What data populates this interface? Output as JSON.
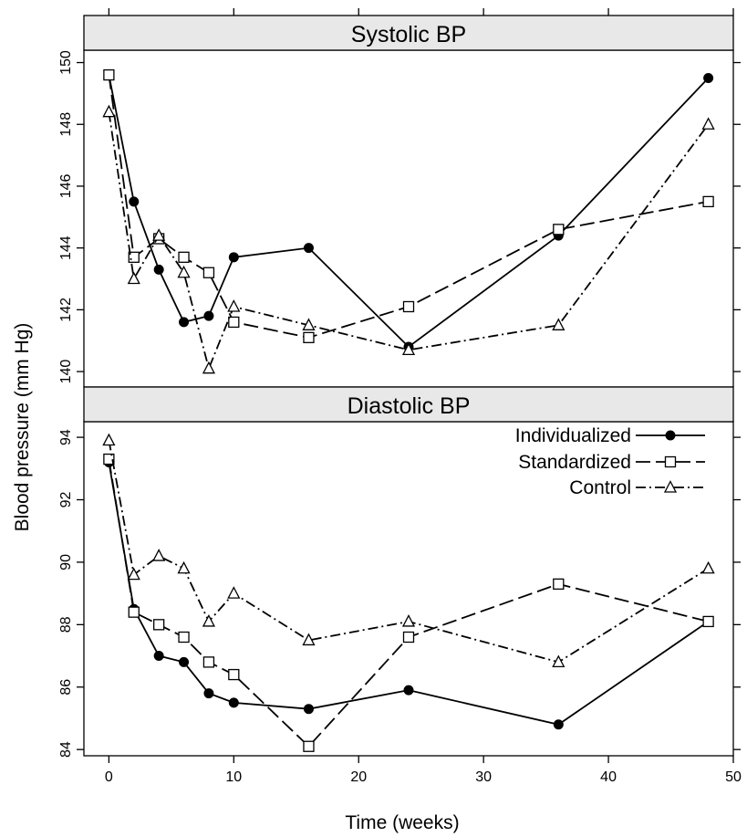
{
  "chart_data": {
    "type": "line",
    "xlabel": "Time (weeks)",
    "ylabel": "Blood pressure (mm Hg)",
    "xlim": [
      -2,
      50
    ],
    "xticks": [
      0,
      10,
      20,
      30,
      40,
      50
    ],
    "grid": false,
    "legend_position": "top-right of lower panel",
    "series_styles": [
      {
        "name": "Individualized",
        "marker": "filled-circle",
        "line": "solid"
      },
      {
        "name": "Standardized",
        "marker": "open-square",
        "line": "long-dash"
      },
      {
        "name": "Control",
        "marker": "open-triangle",
        "line": "dash-dot"
      }
    ],
    "panels": [
      {
        "title": "Systolic BP",
        "ylim": [
          139.5,
          150.4
        ],
        "yticks": [
          140,
          142,
          144,
          146,
          148,
          150
        ],
        "series": [
          {
            "name": "Individualized",
            "x": [
              0,
              2,
              4,
              6,
              8,
              10,
              16,
              24,
              36,
              48
            ],
            "values": [
              149.6,
              145.5,
              143.3,
              141.6,
              141.8,
              143.7,
              144.0,
              140.8,
              144.4,
              149.5
            ]
          },
          {
            "name": "Standardized",
            "x": [
              0,
              2,
              4,
              6,
              8,
              10,
              16,
              24,
              36,
              48
            ],
            "values": [
              149.6,
              143.7,
              144.3,
              143.7,
              143.2,
              141.6,
              141.1,
              142.1,
              144.6,
              145.5
            ]
          },
          {
            "name": "Control",
            "x": [
              0,
              2,
              4,
              6,
              8,
              10,
              16,
              24,
              36,
              48
            ],
            "values": [
              148.4,
              143.0,
              144.4,
              143.2,
              140.1,
              142.1,
              141.5,
              140.7,
              141.5,
              148.0
            ]
          }
        ]
      },
      {
        "title": "Diastolic BP",
        "ylim": [
          83.8,
          94.5
        ],
        "yticks": [
          84,
          86,
          88,
          90,
          92,
          94
        ],
        "series": [
          {
            "name": "Individualized",
            "x": [
              0,
              2,
              4,
              6,
              8,
              10,
              16,
              24,
              36,
              48
            ],
            "values": [
              93.2,
              88.5,
              87.0,
              86.8,
              85.8,
              85.5,
              85.3,
              85.9,
              84.8,
              88.1
            ]
          },
          {
            "name": "Standardized",
            "x": [
              0,
              2,
              4,
              6,
              8,
              10,
              16,
              24,
              36,
              48
            ],
            "values": [
              93.3,
              88.4,
              88.0,
              87.6,
              86.8,
              86.4,
              84.1,
              87.6,
              89.3,
              88.1
            ]
          },
          {
            "name": "Control",
            "x": [
              0,
              2,
              4,
              6,
              8,
              10,
              16,
              24,
              36,
              48
            ],
            "values": [
              93.9,
              89.6,
              90.2,
              89.8,
              88.1,
              89.0,
              87.5,
              88.1,
              86.8,
              89.8
            ]
          }
        ]
      }
    ]
  }
}
